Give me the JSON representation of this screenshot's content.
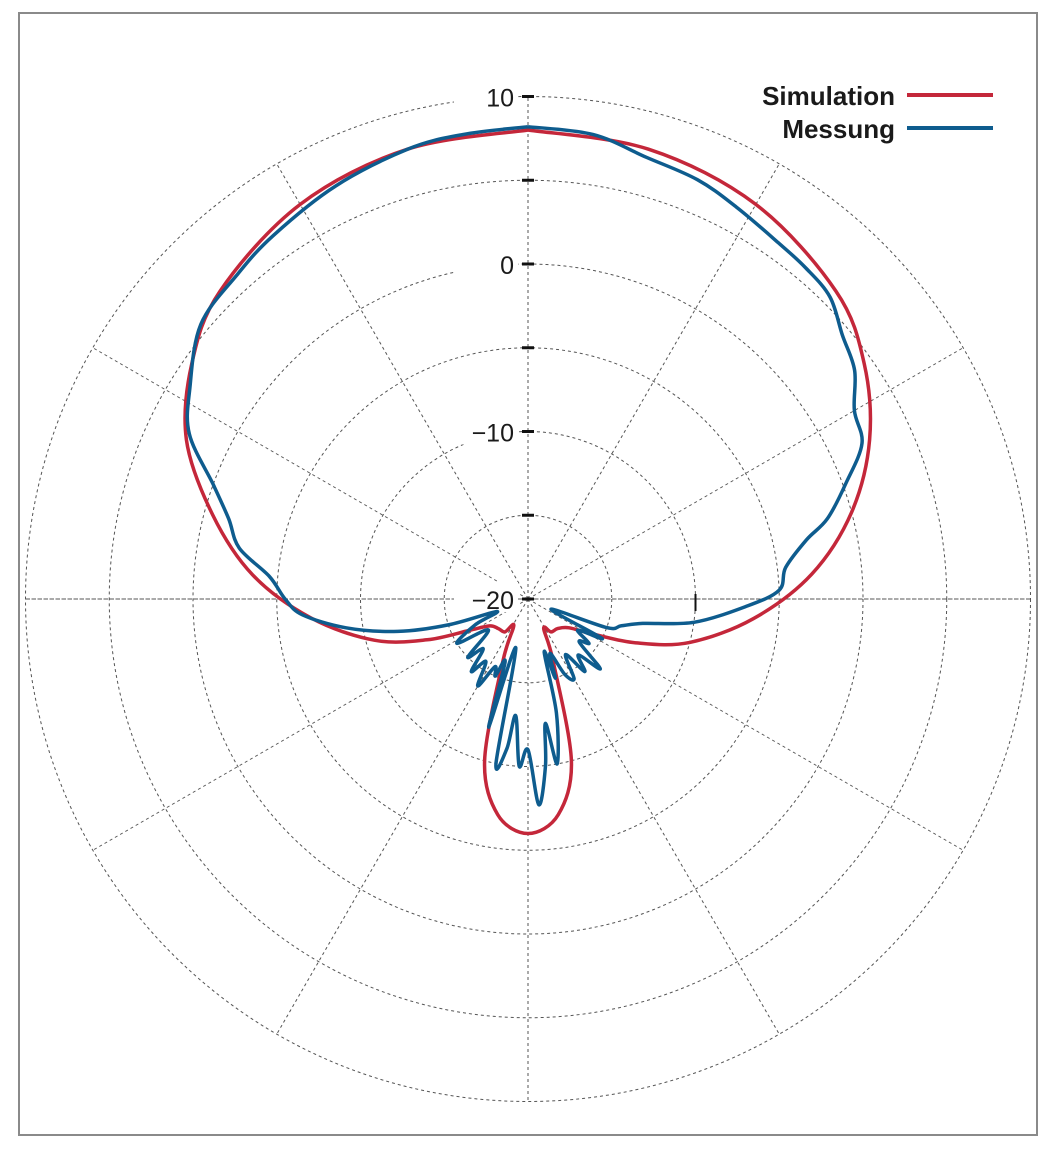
{
  "chart_data": {
    "type": "polar-line",
    "radial_axis": {
      "min": -20,
      "max": 10,
      "step": 5,
      "labeled_ticks": [
        10,
        0,
        -10,
        -20
      ]
    },
    "angular_axis": {
      "spoke_step_deg": 30,
      "zero_direction": "top"
    },
    "outer_grid_value": 10,
    "grid": true,
    "legend_position": "top-right",
    "series": [
      {
        "name": "Simulation",
        "color": "#c4273a",
        "points": [
          [
            0,
            8
          ],
          [
            15,
            7.8
          ],
          [
            30,
            7.2
          ],
          [
            45,
            6
          ],
          [
            55,
            4.5
          ],
          [
            65,
            2.5
          ],
          [
            75,
            0
          ],
          [
            85,
            -3
          ],
          [
            95,
            -6.5
          ],
          [
            105,
            -10
          ],
          [
            112,
            -13
          ],
          [
            118,
            -15.5
          ],
          [
            125,
            -17
          ],
          [
            135,
            -17.5
          ],
          [
            145,
            -17.6
          ],
          [
            152,
            -18
          ],
          [
            158,
            -16
          ],
          [
            165,
            -10
          ],
          [
            172,
            -7
          ],
          [
            180,
            -6
          ],
          [
            188,
            -7
          ],
          [
            195,
            -10
          ],
          [
            202,
            -16
          ],
          [
            208,
            -18.2
          ],
          [
            215,
            -17.6
          ],
          [
            225,
            -17.5
          ],
          [
            235,
            -17.2
          ],
          [
            242,
            -16
          ],
          [
            248,
            -13.5
          ],
          [
            255,
            -10.5
          ],
          [
            265,
            -7
          ],
          [
            275,
            -3.5
          ],
          [
            285,
            -0.5
          ],
          [
            295,
            2.5
          ],
          [
            305,
            4.5
          ],
          [
            315,
            6
          ],
          [
            330,
            7.2
          ],
          [
            345,
            7.8
          ],
          [
            360,
            8
          ]
        ]
      },
      {
        "name": "Messung",
        "color": "#0e5c8e",
        "points": [
          [
            0,
            8.2
          ],
          [
            8,
            8
          ],
          [
            15,
            7.3
          ],
          [
            22,
            7
          ],
          [
            28,
            6.5
          ],
          [
            35,
            6
          ],
          [
            40,
            5.8
          ],
          [
            45,
            5.5
          ],
          [
            50,
            4.5
          ],
          [
            55,
            3.8
          ],
          [
            60,
            2.5
          ],
          [
            65,
            2
          ],
          [
            70,
            0.2
          ],
          [
            75,
            -1.5
          ],
          [
            78,
            -3
          ],
          [
            83,
            -4.5
          ],
          [
            88,
            -5
          ],
          [
            92,
            -7
          ],
          [
            98,
            -10
          ],
          [
            102,
            -13
          ],
          [
            106,
            -14.2
          ],
          [
            110,
            -15
          ],
          [
            114,
            -18.5
          ],
          [
            118,
            -15
          ],
          [
            122,
            -16.5
          ],
          [
            126,
            -15.5
          ],
          [
            130,
            -16
          ],
          [
            134,
            -14
          ],
          [
            138,
            -15.5
          ],
          [
            142,
            -14.5
          ],
          [
            146,
            -16
          ],
          [
            150,
            -14.5
          ],
          [
            154,
            -15
          ],
          [
            158,
            -16.5
          ],
          [
            161,
            -15
          ],
          [
            163,
            -16.7
          ],
          [
            166,
            -13
          ],
          [
            170,
            -10
          ],
          [
            172,
            -12.5
          ],
          [
            174,
            -10
          ],
          [
            177,
            -7.7
          ],
          [
            180,
            -11
          ],
          [
            183,
            -10
          ],
          [
            186,
            -13
          ],
          [
            188,
            -11
          ],
          [
            191,
            -10
          ],
          [
            194,
            -17
          ],
          [
            197,
            -12
          ],
          [
            200,
            -16
          ],
          [
            203,
            -15
          ],
          [
            206,
            -15.5
          ],
          [
            210,
            -14
          ],
          [
            214,
            -15.5
          ],
          [
            218,
            -14.5
          ],
          [
            222,
            -16
          ],
          [
            226,
            -15
          ],
          [
            232,
            -17
          ],
          [
            238,
            -15
          ],
          [
            244,
            -16.5
          ],
          [
            248,
            -18
          ],
          [
            252,
            -15
          ],
          [
            256,
            -12
          ],
          [
            261,
            -9
          ],
          [
            266,
            -6.5
          ],
          [
            270,
            -5.5
          ],
          [
            275,
            -4.5
          ],
          [
            280,
            -2.5
          ],
          [
            285,
            -1.5
          ],
          [
            290,
            0
          ],
          [
            296,
            2.5
          ],
          [
            302,
            3.8
          ],
          [
            310,
            5.5
          ],
          [
            318,
            6
          ],
          [
            325,
            6.5
          ],
          [
            335,
            7.2
          ],
          [
            345,
            7.8
          ],
          [
            352,
            8
          ],
          [
            360,
            8.2
          ]
        ]
      }
    ]
  },
  "colors": {
    "frame": "#8a8a8a",
    "grid": "#555555"
  }
}
